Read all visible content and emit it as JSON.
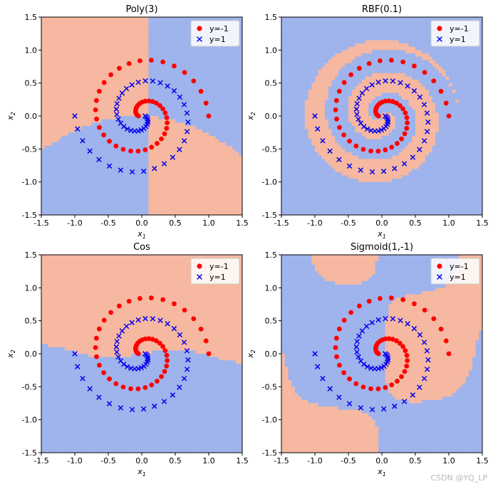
{
  "colors": {
    "region_neg": "#f6b8a0",
    "region_pos": "#9fb3ec",
    "boundary": "#7a7fd0",
    "marker_neg": "#ff0000",
    "marker_pos": "#0000ee"
  },
  "watermark": "CSDN @YQ_LP",
  "chart_data": [
    {
      "type": "scatter",
      "title": "Poly(3)",
      "xlabel": "x1",
      "ylabel": "x2",
      "xlim": [
        -1.5,
        1.5
      ],
      "ylim": [
        -1.5,
        1.5
      ],
      "xticks": [
        "-1.5",
        "-1.0",
        "-0.5",
        "0.0",
        "0.5",
        "1.0",
        "1.5"
      ],
      "yticks": [
        "-1.5",
        "-1.0",
        "-0.5",
        "0.0",
        "0.5",
        "1.0",
        "1.5"
      ],
      "legend": {
        "position": "top-right",
        "entries": [
          "y=-1",
          "y=1"
        ]
      },
      "background": "decision regions (red = y=-1, blue = y=1)",
      "series": [
        {
          "name": "y=-1",
          "marker": "circle",
          "data": "two-arm spiral, radius 0 to 1.0"
        },
        {
          "name": "y=1",
          "marker": "x",
          "data": "two-arm spiral mirrored, radius 0 to 1.0"
        }
      ]
    },
    {
      "type": "scatter",
      "title": "RBF(0.1)",
      "xlabel": "x1",
      "ylabel": "x2",
      "xlim": [
        -1.5,
        1.5
      ],
      "ylim": [
        -1.5,
        1.5
      ],
      "xticks": [
        "-1.5",
        "-1.0",
        "-0.5",
        "0.0",
        "0.5",
        "1.0",
        "1.5"
      ],
      "yticks": [
        "-1.5",
        "-1.0",
        "-0.5",
        "0.0",
        "0.5",
        "1.0",
        "1.5"
      ],
      "legend": {
        "position": "top-right",
        "entries": [
          "y=-1",
          "y=1"
        ]
      },
      "series": [
        {
          "name": "y=-1",
          "marker": "circle"
        },
        {
          "name": "y=1",
          "marker": "x"
        }
      ]
    },
    {
      "type": "scatter",
      "title": "Cos",
      "xlabel": "x1",
      "ylabel": "x2",
      "xlim": [
        -1.5,
        1.5
      ],
      "ylim": [
        -1.5,
        1.5
      ],
      "xticks": [
        "-1.5",
        "-1.0",
        "-0.5",
        "0.0",
        "0.5",
        "1.0",
        "1.5"
      ],
      "yticks": [
        "-1.5",
        "-1.0",
        "-0.5",
        "0.0",
        "0.5",
        "1.0",
        "1.5"
      ],
      "legend": {
        "position": "top-right",
        "entries": [
          "y=-1",
          "y=1"
        ]
      },
      "series": [
        {
          "name": "y=-1",
          "marker": "circle"
        },
        {
          "name": "y=1",
          "marker": "x"
        }
      ]
    },
    {
      "type": "scatter",
      "title": "Sigmoid(1,-1)",
      "xlabel": "x1",
      "ylabel": "x2",
      "xlim": [
        -1.5,
        1.5
      ],
      "ylim": [
        -1.5,
        1.5
      ],
      "xticks": [
        "-1.5",
        "-1.0",
        "-0.5",
        "0.0",
        "0.5",
        "1.0",
        "1.5"
      ],
      "yticks": [
        "-1.5",
        "-1.0",
        "-0.5",
        "0.0",
        "0.5",
        "1.0",
        "1.5"
      ],
      "legend": {
        "position": "top-right",
        "entries": [
          "y=-1",
          "y=1"
        ]
      },
      "series": [
        {
          "name": "y=-1",
          "marker": "circle"
        },
        {
          "name": "y=1",
          "marker": "x"
        }
      ]
    }
  ]
}
